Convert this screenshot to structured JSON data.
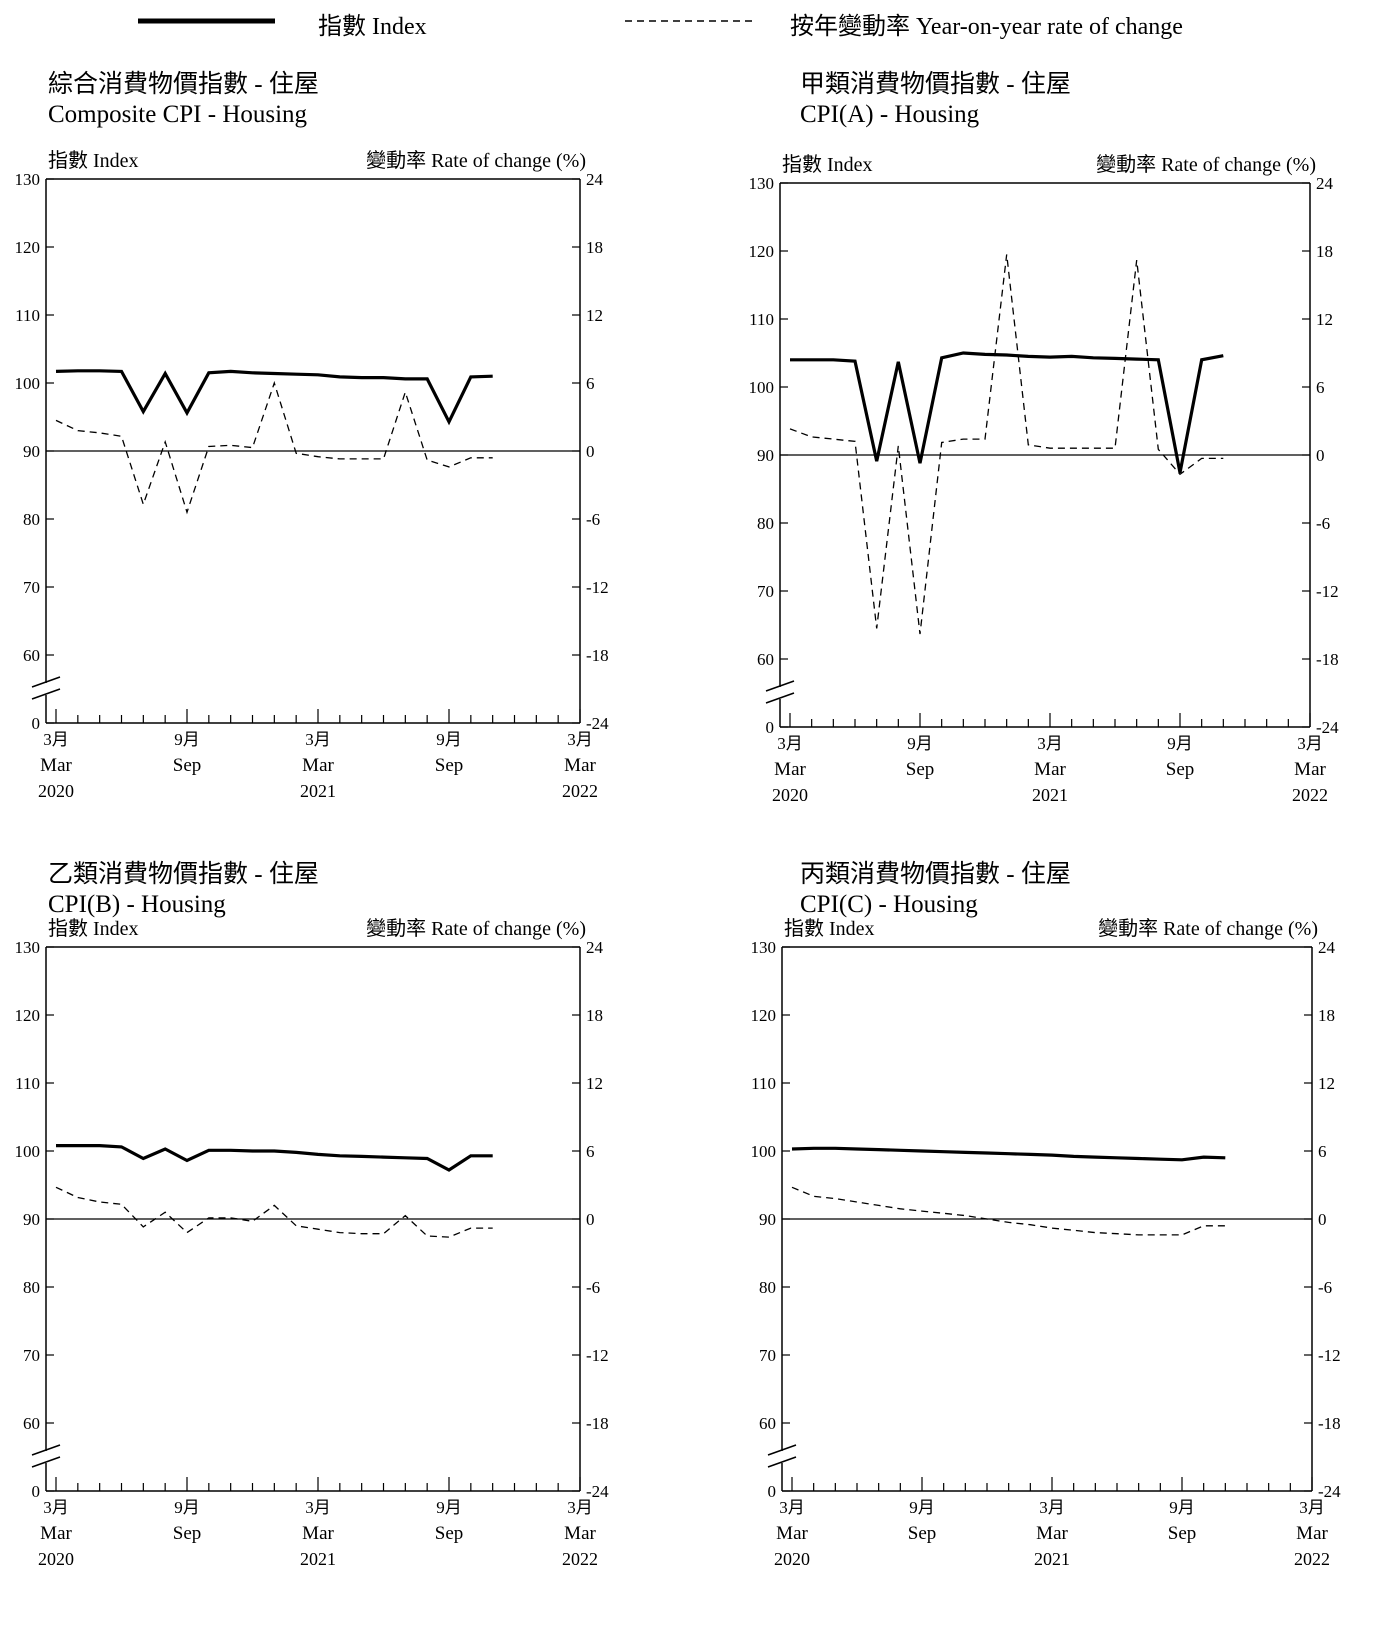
{
  "legend": {
    "index_label": "指數 Index",
    "rate_label": "按年變動率 Year-on-year rate of change"
  },
  "axes": {
    "left_title": "指數 Index",
    "right_title": "變動率 Rate of change (%)",
    "left_ticks": [
      "130",
      "120",
      "110",
      "100",
      "90",
      "80",
      "70",
      "60",
      "0"
    ],
    "right_ticks": [
      "24",
      "18",
      "12",
      "6",
      "0",
      "-6",
      "-12",
      "-18",
      "-24"
    ],
    "x_ticks": [
      {
        "cn": "3月",
        "en": "Mar",
        "year": "2020"
      },
      {
        "cn": "9月",
        "en": "Sep",
        "year": ""
      },
      {
        "cn": "3月",
        "en": "Mar",
        "year": "2021"
      },
      {
        "cn": "9月",
        "en": "Sep",
        "year": ""
      },
      {
        "cn": "3月",
        "en": "Mar",
        "year": "2022"
      }
    ]
  },
  "chart_data": [
    {
      "type": "line",
      "title_cn": "綜合消費物價指數 - 住屋",
      "title_en": "Composite CPI - Housing",
      "x_range": [
        "2020-03",
        "2022-03"
      ],
      "y_left_range": [
        60,
        130
      ],
      "y_left_axis_break": "0 to 60",
      "y_right_range": [
        -24,
        24
      ],
      "grid": false,
      "x": [
        "2020-03",
        "2020-04",
        "2020-05",
        "2020-06",
        "2020-07",
        "2020-08",
        "2020-09",
        "2020-10",
        "2020-11",
        "2020-12",
        "2021-01",
        "2021-02",
        "2021-03",
        "2021-04",
        "2021-05",
        "2021-06",
        "2021-07",
        "2021-08",
        "2021-09",
        "2021-10",
        "2021-11"
      ],
      "series": [
        {
          "name": "指數 Index",
          "axis": "left",
          "style": "solid",
          "values": [
            101.7,
            101.8,
            101.8,
            101.7,
            95.8,
            101.4,
            95.6,
            101.5,
            101.7,
            101.5,
            101.4,
            101.3,
            101.2,
            100.9,
            100.8,
            100.8,
            100.6,
            100.6,
            94.3,
            100.9,
            101.0
          ]
        },
        {
          "name": "按年變動率 Year-on-year rate of change",
          "axis": "right",
          "style": "dashed",
          "values": [
            2.7,
            1.8,
            1.6,
            1.3,
            -4.7,
            0.8,
            -5.4,
            0.4,
            0.5,
            0.3,
            6.0,
            -0.2,
            -0.5,
            -0.7,
            -0.7,
            -0.7,
            5.2,
            -0.8,
            -1.4,
            -0.6,
            -0.6
          ]
        }
      ]
    },
    {
      "type": "line",
      "title_cn": "甲類消費物價指數 - 住屋",
      "title_en": "CPI(A) - Housing",
      "x_range": [
        "2020-03",
        "2022-03"
      ],
      "y_left_range": [
        60,
        130
      ],
      "y_left_axis_break": "0 to 60",
      "y_right_range": [
        -24,
        24
      ],
      "grid": false,
      "x": [
        "2020-03",
        "2020-04",
        "2020-05",
        "2020-06",
        "2020-07",
        "2020-08",
        "2020-09",
        "2020-10",
        "2020-11",
        "2020-12",
        "2021-01",
        "2021-02",
        "2021-03",
        "2021-04",
        "2021-05",
        "2021-06",
        "2021-07",
        "2021-08",
        "2021-09",
        "2021-10",
        "2021-11"
      ],
      "series": [
        {
          "name": "指數 Index",
          "axis": "left",
          "style": "solid",
          "values": [
            104.0,
            104.0,
            104.0,
            103.8,
            89.1,
            103.7,
            88.8,
            104.3,
            105.0,
            104.8,
            104.7,
            104.5,
            104.4,
            104.5,
            104.3,
            104.2,
            104.1,
            104.0,
            87.4,
            104.0,
            104.6
          ]
        },
        {
          "name": "按年變動率 Year-on-year rate of change",
          "axis": "right",
          "style": "dashed",
          "values": [
            2.3,
            1.6,
            1.4,
            1.2,
            -15.3,
            0.8,
            -15.8,
            1.1,
            1.4,
            1.4,
            17.7,
            0.9,
            0.6,
            0.6,
            0.6,
            0.6,
            17.2,
            0.5,
            -1.7,
            -0.3,
            -0.3
          ]
        }
      ]
    },
    {
      "type": "line",
      "title_cn": "乙類消費物價指數 - 住屋",
      "title_en": "CPI(B) - Housing",
      "x_range": [
        "2020-03",
        "2022-03"
      ],
      "y_left_range": [
        60,
        130
      ],
      "y_left_axis_break": "0 to 60",
      "y_right_range": [
        -24,
        24
      ],
      "grid": false,
      "x": [
        "2020-03",
        "2020-04",
        "2020-05",
        "2020-06",
        "2020-07",
        "2020-08",
        "2020-09",
        "2020-10",
        "2020-11",
        "2020-12",
        "2021-01",
        "2021-02",
        "2021-03",
        "2021-04",
        "2021-05",
        "2021-06",
        "2021-07",
        "2021-08",
        "2021-09",
        "2021-10",
        "2021-11"
      ],
      "series": [
        {
          "name": "指數 Index",
          "axis": "left",
          "style": "solid",
          "values": [
            100.8,
            100.8,
            100.8,
            100.6,
            98.9,
            100.3,
            98.6,
            100.1,
            100.1,
            100.0,
            100.0,
            99.8,
            99.5,
            99.3,
            99.2,
            99.1,
            99.0,
            98.9,
            97.2,
            99.3,
            99.3
          ]
        },
        {
          "name": "按年變動率 Year-on-year rate of change",
          "axis": "right",
          "style": "dashed",
          "values": [
            2.8,
            1.9,
            1.5,
            1.3,
            -0.7,
            0.6,
            -1.2,
            0.1,
            0.1,
            -0.2,
            1.2,
            -0.6,
            -0.9,
            -1.2,
            -1.3,
            -1.3,
            0.3,
            -1.5,
            -1.6,
            -0.8,
            -0.8
          ]
        }
      ]
    },
    {
      "type": "line",
      "title_cn": "丙類消費物價指數 - 住屋",
      "title_en": "CPI(C) - Housing",
      "x_range": [
        "2020-03",
        "2022-03"
      ],
      "y_left_range": [
        60,
        130
      ],
      "y_left_axis_break": "0 to 60",
      "y_right_range": [
        -24,
        24
      ],
      "grid": false,
      "x": [
        "2020-03",
        "2020-04",
        "2020-05",
        "2020-06",
        "2020-07",
        "2020-08",
        "2020-09",
        "2020-10",
        "2020-11",
        "2020-12",
        "2021-01",
        "2021-02",
        "2021-03",
        "2021-04",
        "2021-05",
        "2021-06",
        "2021-07",
        "2021-08",
        "2021-09",
        "2021-10",
        "2021-11"
      ],
      "series": [
        {
          "name": "指數 Index",
          "axis": "left",
          "style": "solid",
          "values": [
            100.3,
            100.4,
            100.4,
            100.3,
            100.2,
            100.1,
            100.0,
            99.9,
            99.8,
            99.7,
            99.6,
            99.5,
            99.4,
            99.2,
            99.1,
            99.0,
            98.9,
            98.8,
            98.7,
            99.1,
            99.0
          ]
        },
        {
          "name": "按年變動率 Year-on-year rate of change",
          "axis": "right",
          "style": "dashed",
          "values": [
            2.8,
            2.0,
            1.8,
            1.5,
            1.2,
            0.9,
            0.7,
            0.5,
            0.3,
            0.0,
            -0.3,
            -0.5,
            -0.8,
            -1.0,
            -1.2,
            -1.3,
            -1.4,
            -1.4,
            -1.4,
            -0.6,
            -0.6
          ]
        }
      ]
    }
  ]
}
